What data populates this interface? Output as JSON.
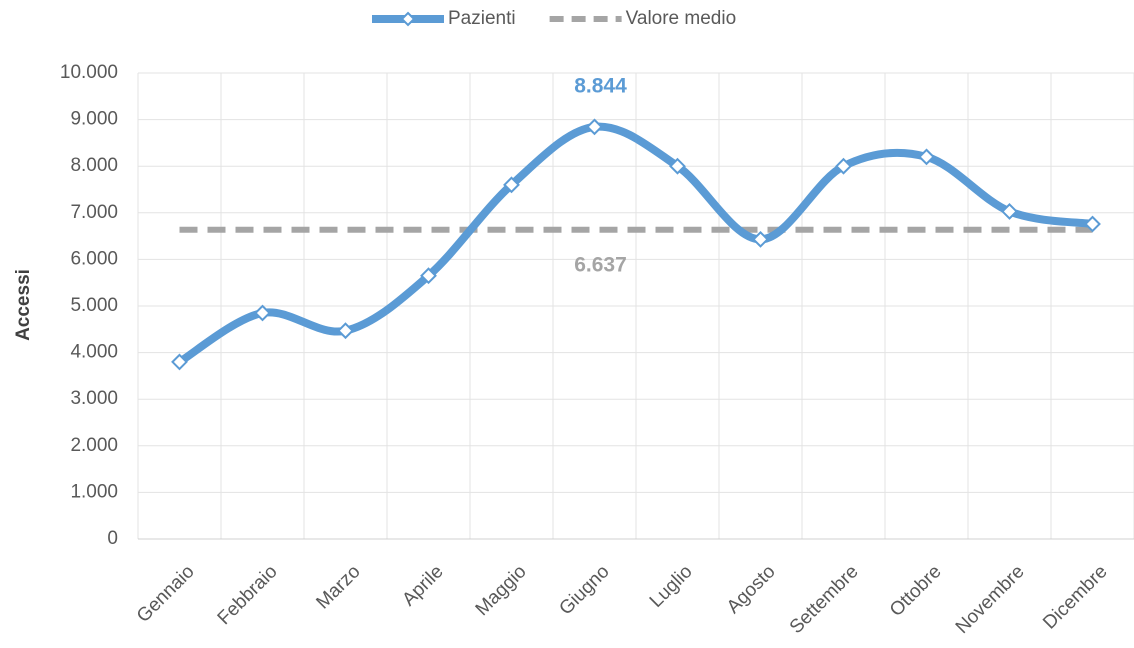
{
  "chart_data": {
    "type": "line",
    "y_label": "Accessi",
    "categories": [
      "Gennaio",
      "Febbraio",
      "Marzo",
      "Aprile",
      "Maggio",
      "Giugno",
      "Luglio",
      "Agosto",
      "Settembre",
      "Ottobre",
      "Novembre",
      "Dicembre"
    ],
    "series": [
      {
        "name": "Pazienti",
        "color": "#5b9bd5",
        "smooth": true,
        "marker": "diamond",
        "values": [
          3800,
          4850,
          4470,
          5650,
          7600,
          8844,
          8000,
          6430,
          8000,
          8200,
          7030,
          6760
        ],
        "value_labels": [
          null,
          null,
          null,
          null,
          null,
          "8.844",
          null,
          null,
          null,
          null,
          null,
          null
        ]
      },
      {
        "name": "Valore medio",
        "color": "#a5a5a5",
        "dashed": true,
        "values": [
          6637,
          6637,
          6637,
          6637,
          6637,
          6637,
          6637,
          6637,
          6637,
          6637,
          6637,
          6637
        ],
        "value_labels": [
          null,
          null,
          null,
          null,
          null,
          "6.637",
          null,
          null,
          null,
          null,
          null,
          null
        ]
      }
    ],
    "ylim": [
      0,
      10000
    ],
    "yticks": [
      0,
      {
        "value": 1000,
        "label": "1.000"
      },
      {
        "value": 2000,
        "label": "2.000"
      },
      {
        "value": 3000,
        "label": "3.000"
      },
      {
        "value": 4000,
        "label": "4.000"
      },
      {
        "value": 5000,
        "label": "5.000"
      },
      {
        "value": 6000,
        "label": "6.000"
      },
      {
        "value": 7000,
        "label": "7.000"
      },
      {
        "value": 8000,
        "label": "8.000"
      },
      {
        "value": 9000,
        "label": "9.000"
      },
      {
        "value": 10000,
        "label": "10.000"
      }
    ],
    "grid": true,
    "legend": "top"
  }
}
